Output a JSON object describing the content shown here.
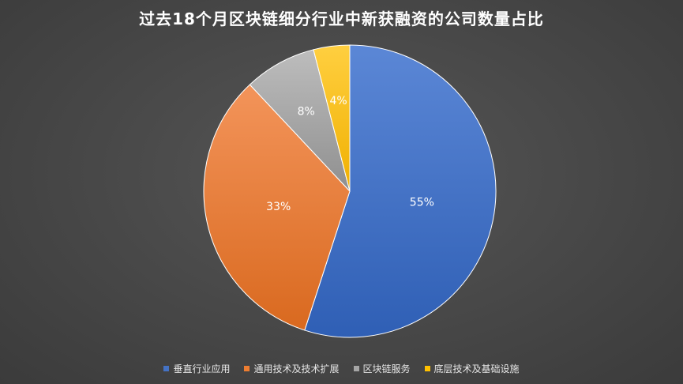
{
  "chart_data": {
    "type": "pie",
    "title": "过去18个月区块链细分行业中新获融资的公司数量占比",
    "categories": [
      "垂直行业应用",
      "通用技术及技术扩展",
      "区块链服务",
      "底层技术及基础设施"
    ],
    "values": [
      55,
      33,
      8,
      4
    ],
    "value_labels": [
      "55%",
      "33%",
      "8%",
      "4%"
    ],
    "colors": [
      "#4472C4",
      "#ED7D31",
      "#A5A5A5",
      "#FFC000"
    ],
    "legend_position": "bottom",
    "start_angle": "12 o'clock",
    "direction": "clockwise"
  }
}
